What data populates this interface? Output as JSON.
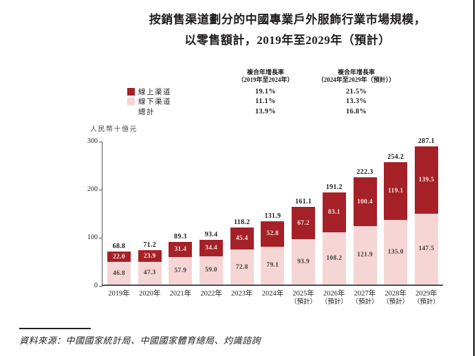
{
  "title": {
    "line1": "按銷售渠道劃分的中國專業戶外服飾行業市場規模，",
    "line2": "以零售額計，2019年至2029年（預計）"
  },
  "cagr_table": {
    "col1_header_line1": "複合年增長率",
    "col1_header_line2": "（2019年至2024年）",
    "col2_header_line1": "複合年增長率",
    "col2_header_line2": "（2024年至2029年（預計））",
    "rows": [
      {
        "label": "線上渠道",
        "swatch": "#A52127",
        "col1": "19.1%",
        "col2": "21.5%"
      },
      {
        "label": "線下渠道",
        "swatch": "#F5D6D4",
        "col1": "11.1%",
        "col2": "13.3%"
      },
      {
        "label": "總計",
        "swatch": null,
        "col1": "13.9%",
        "col2": "16.8%"
      }
    ]
  },
  "chart_data": {
    "type": "bar",
    "stacked": true,
    "title": "按銷售渠道劃分的中國專業戶外服飾行業市場規模，以零售額計，2019年至2029年（預計）",
    "unit_label": "人民幣十億元",
    "ylim": [
      0,
      300
    ],
    "yticks": [
      0,
      100,
      200,
      300
    ],
    "categories": [
      "2019年",
      "2020年",
      "2021年",
      "2022年",
      "2023年",
      "2024年",
      "2025年",
      "2026年",
      "2027年",
      "2028年",
      "2029年"
    ],
    "forecast_suffix": "（預計）",
    "forecast_from_index": 6,
    "series": [
      {
        "name": "線上渠道",
        "color": "#A52127",
        "values": [
          22.0,
          23.9,
          31.4,
          34.4,
          45.4,
          52.8,
          67.2,
          83.1,
          100.4,
          119.1,
          139.5
        ]
      },
      {
        "name": "線下渠道",
        "color": "#F5D6D4",
        "values": [
          46.8,
          47.3,
          57.9,
          59.0,
          72.8,
          79.1,
          93.9,
          108.2,
          121.9,
          135.0,
          147.5
        ]
      }
    ],
    "totals": [
      68.8,
      71.2,
      89.3,
      93.4,
      118.2,
      131.9,
      161.1,
      191.2,
      222.3,
      254.2,
      287.1
    ],
    "cagr": {
      "2019_2024": {
        "online": "19.1%",
        "offline": "11.1%",
        "total": "13.9%"
      },
      "2024_2029": {
        "online": "21.5%",
        "offline": "13.3%",
        "total": "16.8%"
      }
    }
  },
  "footer": {
    "source": "資料來源：中國國家統計局、中國國家體育總局、灼識諮詢"
  },
  "colors": {
    "online_bar": "#A52127",
    "offline_bar": "#F5D6D4",
    "online_value_text": "#F6E5E4",
    "offline_value_text": "#403F41",
    "text": "#211D1E",
    "axis": "#55565A"
  }
}
